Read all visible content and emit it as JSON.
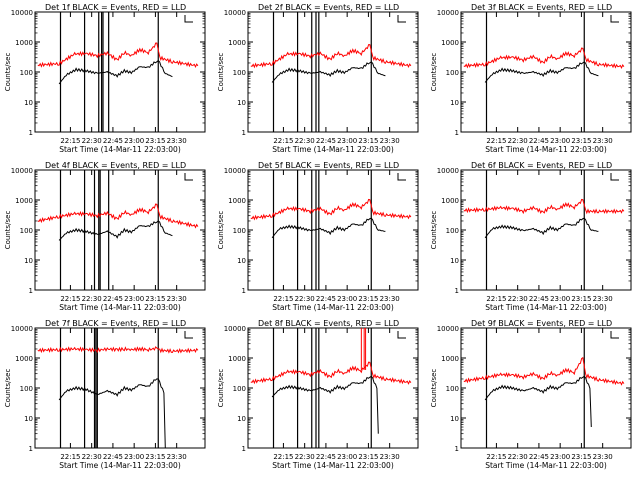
{
  "chart_data": {
    "type": "line",
    "layout": "3x3 grid",
    "y_scale": "log",
    "ylim": [
      1,
      10000
    ],
    "ytick_values": [
      1,
      10,
      100,
      1000,
      10000
    ],
    "ytick_labels": [
      "1",
      "10",
      "100",
      "1000",
      "10000"
    ],
    "xlim_minutes_labels": [
      "22:15",
      "22:30",
      "22:45",
      "23:00",
      "23:15",
      "23:30"
    ],
    "xtick_labels": [
      "22:15",
      "22:30",
      "22:45",
      "23:00",
      "23:15",
      "23:30"
    ],
    "ylabel": "Counts/sec",
    "xlabel": "Start Time (14-Mar-11 22:03:00)",
    "colors": {
      "events": "#000000",
      "lld": "#ff0000"
    },
    "panels": [
      {
        "title": "Det 1f BLACK = Events, RED = LLD",
        "black_x": [
          "22:07",
          "22:12",
          "22:19",
          "22:26",
          "22:34",
          "22:41",
          "22:48",
          "22:53",
          "22:58",
          "23:04",
          "23:10",
          "23:16",
          "23:18",
          "23:22",
          "23:27"
        ],
        "black_y": [
          40,
          80,
          120,
          110,
          90,
          100,
          75,
          110,
          95,
          150,
          140,
          240,
          200,
          90,
          70
        ],
        "red_x": [
          "21:52",
          "22:07",
          "22:18",
          "22:27",
          "22:34",
          "22:41",
          "22:48",
          "22:53",
          "22:58",
          "23:04",
          "23:10",
          "23:16",
          "23:18",
          "23:27",
          "23:45"
        ],
        "red_y": [
          170,
          190,
          400,
          410,
          350,
          430,
          250,
          450,
          350,
          550,
          450,
          900,
          300,
          220,
          160
        ],
        "vlines": [
          "22:08",
          "22:25",
          "22:35",
          "22:37",
          "22:38",
          "22:42",
          "23:17"
        ]
      },
      {
        "title": "Det 2f BLACK = Events, RED = LLD",
        "black_x": [
          "22:07",
          "22:12",
          "22:19",
          "22:26",
          "22:34",
          "22:41",
          "22:48",
          "22:53",
          "22:58",
          "23:04",
          "23:10",
          "23:16",
          "23:18",
          "23:22",
          "23:27"
        ],
        "black_y": [
          45,
          85,
          120,
          110,
          90,
          100,
          80,
          110,
          95,
          140,
          130,
          220,
          180,
          90,
          75
        ],
        "red_x": [
          "21:52",
          "22:07",
          "22:18",
          "22:27",
          "22:34",
          "22:41",
          "22:48",
          "22:53",
          "22:58",
          "23:04",
          "23:10",
          "23:16",
          "23:18",
          "23:27",
          "23:45"
        ],
        "red_y": [
          160,
          190,
          400,
          400,
          340,
          420,
          260,
          430,
          340,
          520,
          420,
          800,
          300,
          220,
          160
        ],
        "vlines": [
          "22:08",
          "22:25",
          "22:35",
          "22:38",
          "22:40",
          "23:17"
        ]
      },
      {
        "title": "Det 3f BLACK = Events, RED = LLD",
        "black_x": [
          "22:07",
          "22:12",
          "22:19",
          "22:26",
          "22:34",
          "22:41",
          "22:48",
          "22:53",
          "22:58",
          "23:04",
          "23:10",
          "23:16",
          "23:18",
          "23:22",
          "23:27"
        ],
        "black_y": [
          45,
          85,
          120,
          110,
          90,
          100,
          80,
          110,
          95,
          140,
          130,
          220,
          180,
          90,
          75
        ],
        "red_x": [
          "21:52",
          "22:07",
          "22:18",
          "22:27",
          "22:34",
          "22:41",
          "22:48",
          "22:53",
          "22:58",
          "23:04",
          "23:10",
          "23:16",
          "23:18",
          "23:27",
          "23:45"
        ],
        "red_y": [
          160,
          180,
          300,
          310,
          250,
          330,
          200,
          340,
          270,
          420,
          350,
          600,
          260,
          180,
          150
        ],
        "vlines": [
          "22:08",
          "23:17"
        ]
      },
      {
        "title": "Det 4f BLACK = Events, RED = LLD",
        "black_x": [
          "22:07",
          "22:12",
          "22:19",
          "22:26",
          "22:34",
          "22:41",
          "22:48",
          "22:53",
          "22:58",
          "23:04",
          "23:10",
          "23:16",
          "23:18",
          "23:22",
          "23:27"
        ],
        "black_y": [
          45,
          80,
          100,
          90,
          70,
          90,
          60,
          100,
          85,
          140,
          130,
          200,
          170,
          80,
          65
        ],
        "red_x": [
          "21:52",
          "22:07",
          "22:18",
          "22:27",
          "22:34",
          "22:41",
          "22:48",
          "22:53",
          "22:58",
          "23:04",
          "23:10",
          "23:16",
          "23:18",
          "23:27",
          "23:45"
        ],
        "red_y": [
          200,
          280,
          350,
          340,
          300,
          370,
          230,
          400,
          320,
          480,
          400,
          700,
          280,
          200,
          130
        ],
        "vlines": [
          "22:08",
          "22:25",
          "22:32",
          "22:35",
          "22:36",
          "22:42",
          "23:17"
        ]
      },
      {
        "title": "Det 5f BLACK = Events, RED = LLD",
        "black_x": [
          "22:07",
          "22:12",
          "22:19",
          "22:26",
          "22:34",
          "22:41",
          "22:48",
          "22:53",
          "22:58",
          "23:04",
          "23:10",
          "23:16",
          "23:18",
          "23:22",
          "23:27"
        ],
        "black_y": [
          55,
          110,
          130,
          120,
          95,
          110,
          80,
          120,
          100,
          160,
          140,
          260,
          200,
          100,
          90
        ],
        "red_x": [
          "21:52",
          "22:07",
          "22:18",
          "22:27",
          "22:34",
          "22:41",
          "22:48",
          "22:53",
          "22:58",
          "23:04",
          "23:10",
          "23:16",
          "23:18",
          "23:27",
          "23:45"
        ],
        "red_y": [
          250,
          300,
          520,
          500,
          420,
          520,
          330,
          560,
          450,
          720,
          580,
          1000,
          380,
          320,
          270
        ],
        "vlines": [
          "22:08",
          "22:25",
          "22:35",
          "22:38",
          "22:40",
          "23:17"
        ]
      },
      {
        "title": "Det 6f BLACK = Events, RED = LLD",
        "black_x": [
          "22:07",
          "22:12",
          "22:19",
          "22:26",
          "22:34",
          "22:41",
          "22:48",
          "22:53",
          "22:58",
          "23:04",
          "23:10",
          "23:16",
          "23:18",
          "23:22",
          "23:27"
        ],
        "black_y": [
          55,
          110,
          130,
          120,
          95,
          110,
          80,
          120,
          100,
          160,
          140,
          260,
          200,
          100,
          90
        ],
        "red_x": [
          "21:52",
          "22:07",
          "22:18",
          "22:27",
          "22:34",
          "22:41",
          "22:48",
          "22:53",
          "22:58",
          "23:04",
          "23:10",
          "23:16",
          "23:18",
          "23:27",
          "23:45"
        ],
        "red_y": [
          450,
          480,
          550,
          520,
          420,
          560,
          380,
          600,
          480,
          720,
          580,
          1000,
          420,
          420,
          420
        ],
        "vlines": [
          "22:08",
          "23:17"
        ]
      },
      {
        "title": "Det 7f BLACK = Events, RED = LLD",
        "black_x": [
          "22:07",
          "22:12",
          "22:19",
          "22:26",
          "22:34",
          "22:41",
          "22:48",
          "22:53",
          "22:58",
          "23:04",
          "23:10",
          "23:16",
          "23:18",
          "23:21",
          "23:22"
        ],
        "black_y": [
          40,
          80,
          100,
          90,
          60,
          80,
          60,
          100,
          85,
          130,
          110,
          220,
          150,
          70,
          1
        ],
        "red_x": [
          "21:52",
          "22:07",
          "22:18",
          "22:27",
          "22:34",
          "22:41",
          "22:48",
          "22:53",
          "22:58",
          "23:04",
          "23:10",
          "23:16",
          "23:18",
          "23:27",
          "23:45"
        ],
        "red_y": [
          1800,
          1900,
          2000,
          1900,
          1800,
          2000,
          1900,
          2000,
          1900,
          2000,
          1900,
          2100,
          1800,
          1700,
          1800
        ],
        "vlines": [
          "22:08",
          "22:25",
          "22:32",
          "22:33",
          "22:34",
          "23:17"
        ]
      },
      {
        "title": "Det 8f BLACK = Events, RED = LLD",
        "black_x": [
          "22:07",
          "22:12",
          "22:19",
          "22:26",
          "22:34",
          "22:41",
          "22:48",
          "22:53",
          "22:58",
          "23:04",
          "23:10",
          "23:16",
          "23:18",
          "23:21",
          "23:22"
        ],
        "black_y": [
          50,
          90,
          110,
          100,
          80,
          100,
          75,
          110,
          95,
          150,
          140,
          250,
          200,
          100,
          3
        ],
        "red_x": [
          "21:52",
          "22:07",
          "22:18",
          "22:27",
          "22:34",
          "22:41",
          "22:48",
          "22:53",
          "22:58",
          "23:04",
          "23:10",
          "23:16",
          "23:18",
          "23:27",
          "23:45"
        ],
        "red_y": [
          160,
          200,
          350,
          340,
          280,
          370,
          230,
          380,
          300,
          470,
          380,
          700,
          260,
          200,
          150
        ],
        "spikes_x": [
          "23:10",
          "23:12",
          "23:13"
        ],
        "spikes_y": [
          10000,
          10000,
          10000
        ],
        "vlines": [
          "22:08",
          "22:25",
          "22:35",
          "22:38",
          "22:40",
          "23:17"
        ]
      },
      {
        "title": "Det 9f BLACK = Events, RED = LLD",
        "black_x": [
          "22:07",
          "22:12",
          "22:19",
          "22:26",
          "22:34",
          "22:41",
          "22:48",
          "22:53",
          "22:58",
          "23:04",
          "23:10",
          "23:16",
          "23:18",
          "23:21",
          "23:22"
        ],
        "black_y": [
          40,
          80,
          110,
          100,
          80,
          100,
          75,
          110,
          95,
          150,
          140,
          250,
          200,
          100,
          5
        ],
        "red_x": [
          "21:52",
          "22:07",
          "22:18",
          "22:27",
          "22:34",
          "22:41",
          "22:48",
          "22:53",
          "22:58",
          "23:04",
          "23:10",
          "23:16",
          "23:18",
          "23:27",
          "23:45"
        ],
        "red_y": [
          170,
          220,
          280,
          270,
          230,
          300,
          200,
          320,
          260,
          400,
          330,
          1000,
          260,
          190,
          140
        ],
        "vlines": [
          "22:08",
          "23:17"
        ]
      }
    ]
  }
}
